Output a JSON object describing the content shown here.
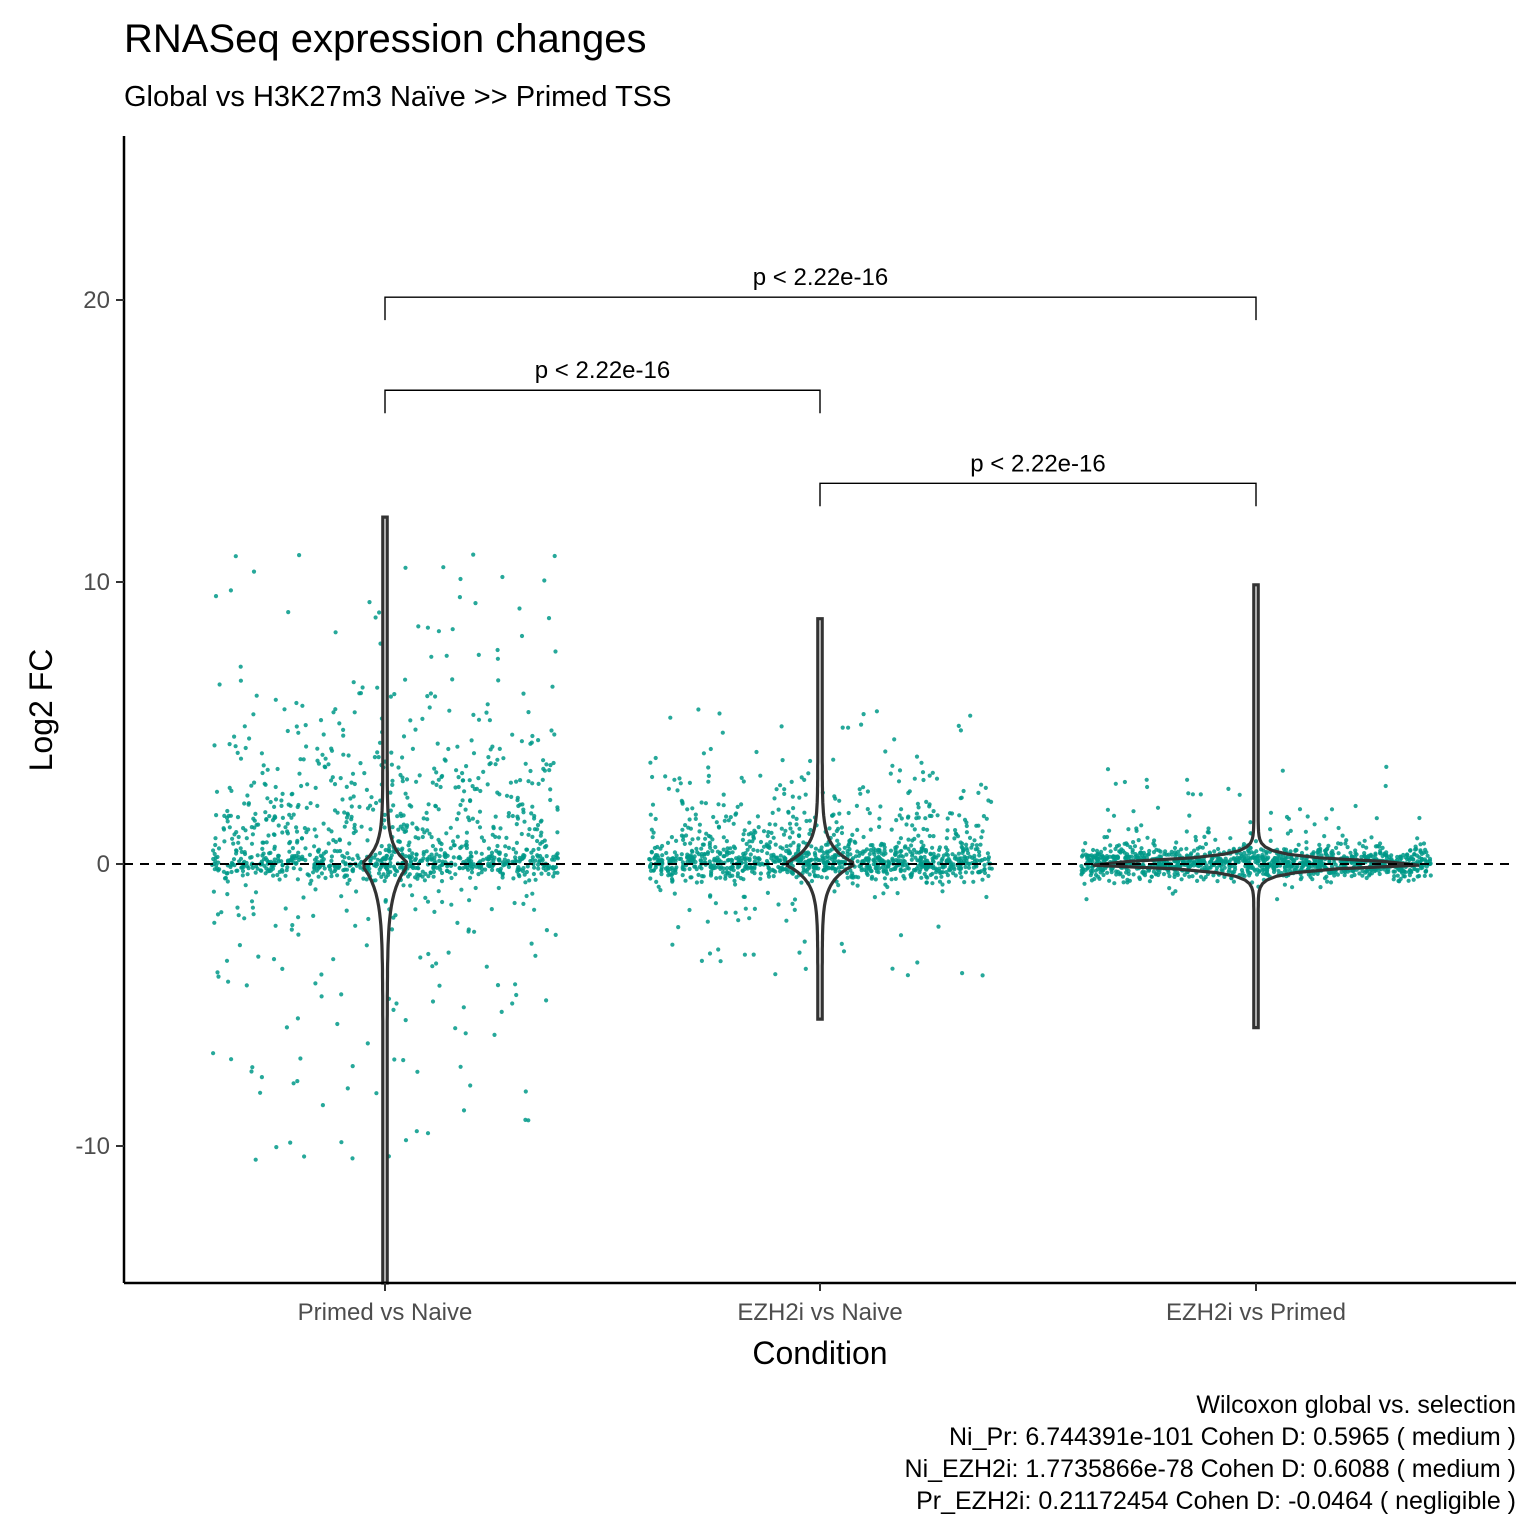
{
  "chart_data": {
    "type": "scatter",
    "title": "RNASeq expression changes",
    "subtitle": "Global vs H3K27m3 Naïve >> Primed TSS",
    "xlabel": "Condition",
    "ylabel": "Log2 FC",
    "categories": [
      "Primed vs Naive",
      "EZH2i vs Naive",
      "EZH2i vs Primed"
    ],
    "ylim": [
      -15,
      25
    ],
    "yticks": [
      -10,
      0,
      10,
      20
    ],
    "reference_line": {
      "y": 0,
      "style": "dashed"
    },
    "point_color": "#009988",
    "violin_color": "#333333",
    "violins": [
      {
        "category": "Primed vs Naive",
        "min": -15,
        "max": 12.3
      },
      {
        "category": "EZH2i vs Naive",
        "min": -5.5,
        "max": 8.7
      },
      {
        "category": "EZH2i vs Primed",
        "min": -5.8,
        "max": 9.9
      }
    ],
    "jitter_summary": [
      {
        "category": "Primed vs Naive",
        "approx_points": 1200,
        "bulk_range": [
          -2,
          7
        ],
        "spread": "wide"
      },
      {
        "category": "EZH2i vs Naive",
        "approx_points": 1200,
        "bulk_range": [
          -0.8,
          4
        ],
        "spread": "medium"
      },
      {
        "category": "EZH2i vs Primed",
        "approx_points": 1200,
        "bulk_range": [
          -0.6,
          1.5
        ],
        "spread": "narrow"
      }
    ],
    "comparisons": [
      {
        "from": "Primed vs Naive",
        "to": "EZH2i vs Naive",
        "y": 16.8,
        "label": "p < 2.22e-16"
      },
      {
        "from": "EZH2i vs Naive",
        "to": "EZH2i vs Primed",
        "y": 13.5,
        "label": "p < 2.22e-16"
      },
      {
        "from": "Primed vs Naive",
        "to": "EZH2i vs Primed",
        "y": 20.1,
        "label": "p < 2.22e-16"
      }
    ],
    "caption": [
      "Wilcoxon global vs. selection",
      "Ni_Pr: 6.744391e-101 Cohen D: 0.5965 ( medium )",
      "Ni_EZH2i: 1.7735866e-78 Cohen D: 0.6088 ( medium )",
      "Pr_EZH2i: 0.21172454 Cohen D: -0.0464 ( negligible )"
    ]
  }
}
